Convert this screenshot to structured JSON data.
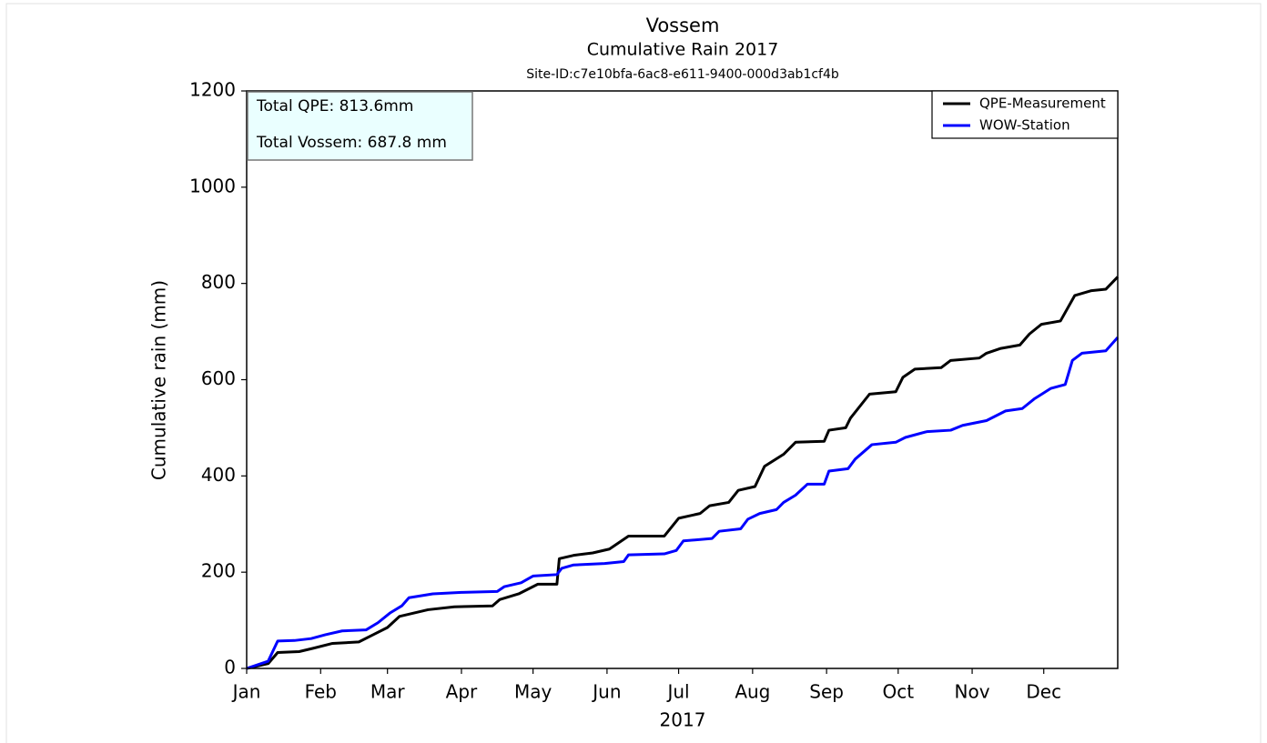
{
  "chart_data": {
    "type": "line",
    "title": "Vossem",
    "subtitle": "Cumulative Rain 2017",
    "site_id": "Site-ID:c7e10bfa-6ac8-e611-9400-000d3ab1cf4b",
    "xlabel": "2017",
    "ylabel": "Cumulative rain (mm)",
    "annotations": [
      "Total QPE: 813.6mm",
      "Total Vossem: 687.8 mm"
    ],
    "legend": "upper right",
    "xlim": [
      0,
      365
    ],
    "xticks": [
      {
        "value": 0,
        "label": "Jan"
      },
      {
        "value": 31,
        "label": "Feb"
      },
      {
        "value": 59,
        "label": "Mar"
      },
      {
        "value": 90,
        "label": "Apr"
      },
      {
        "value": 120,
        "label": "May"
      },
      {
        "value": 151,
        "label": "Jun"
      },
      {
        "value": 181,
        "label": "Jul"
      },
      {
        "value": 212,
        "label": "Aug"
      },
      {
        "value": 243,
        "label": "Sep"
      },
      {
        "value": 273,
        "label": "Oct"
      },
      {
        "value": 304,
        "label": "Nov"
      },
      {
        "value": 334,
        "label": "Dec"
      }
    ],
    "ylim": [
      0,
      1200
    ],
    "yticks": [
      0,
      200,
      400,
      600,
      800,
      1000,
      1200
    ],
    "series": [
      {
        "name": "QPE-Measurement",
        "color": "#000000",
        "x": [
          0,
          9,
          13,
          22,
          28,
          36,
          47,
          53,
          59,
          64,
          76,
          87,
          103,
          106,
          114,
          122,
          130,
          131,
          137,
          145,
          152,
          160,
          175,
          181,
          190,
          194,
          202,
          206,
          213,
          217,
          225,
          230,
          242,
          244,
          251,
          253,
          261,
          272,
          275,
          280,
          291,
          295,
          307,
          310,
          316,
          324,
          328,
          333,
          341,
          347,
          354,
          360,
          365
        ],
        "values": [
          0,
          10,
          33,
          35,
          42,
          52,
          55,
          70,
          85,
          108,
          122,
          128,
          130,
          143,
          155,
          175,
          175,
          228,
          235,
          240,
          248,
          275,
          275,
          312,
          322,
          338,
          345,
          370,
          378,
          420,
          445,
          470,
          472,
          495,
          500,
          520,
          570,
          575,
          605,
          622,
          625,
          640,
          645,
          655,
          665,
          672,
          695,
          715,
          722,
          775,
          785,
          788,
          813.6
        ]
      },
      {
        "name": "WOW-Station",
        "color": "#0000ff",
        "x": [
          0,
          9,
          13,
          20,
          27,
          33,
          40,
          50,
          55,
          60,
          65,
          68,
          78,
          90,
          105,
          108,
          115,
          120,
          130,
          132,
          137,
          150,
          158,
          160,
          175,
          180,
          183,
          195,
          198,
          207,
          210,
          215,
          222,
          225,
          230,
          235,
          242,
          244,
          252,
          255,
          262,
          272,
          276,
          285,
          295,
          300,
          310,
          318,
          325,
          330,
          337,
          343,
          346,
          350,
          360,
          365
        ],
        "values": [
          0,
          15,
          57,
          58,
          62,
          70,
          78,
          80,
          95,
          115,
          130,
          147,
          155,
          158,
          160,
          170,
          178,
          192,
          195,
          208,
          215,
          218,
          222,
          236,
          238,
          245,
          265,
          270,
          285,
          290,
          310,
          322,
          330,
          345,
          360,
          383,
          383,
          410,
          415,
          435,
          465,
          470,
          480,
          492,
          495,
          505,
          515,
          535,
          540,
          560,
          582,
          590,
          640,
          655,
          660,
          687.8
        ]
      }
    ]
  }
}
